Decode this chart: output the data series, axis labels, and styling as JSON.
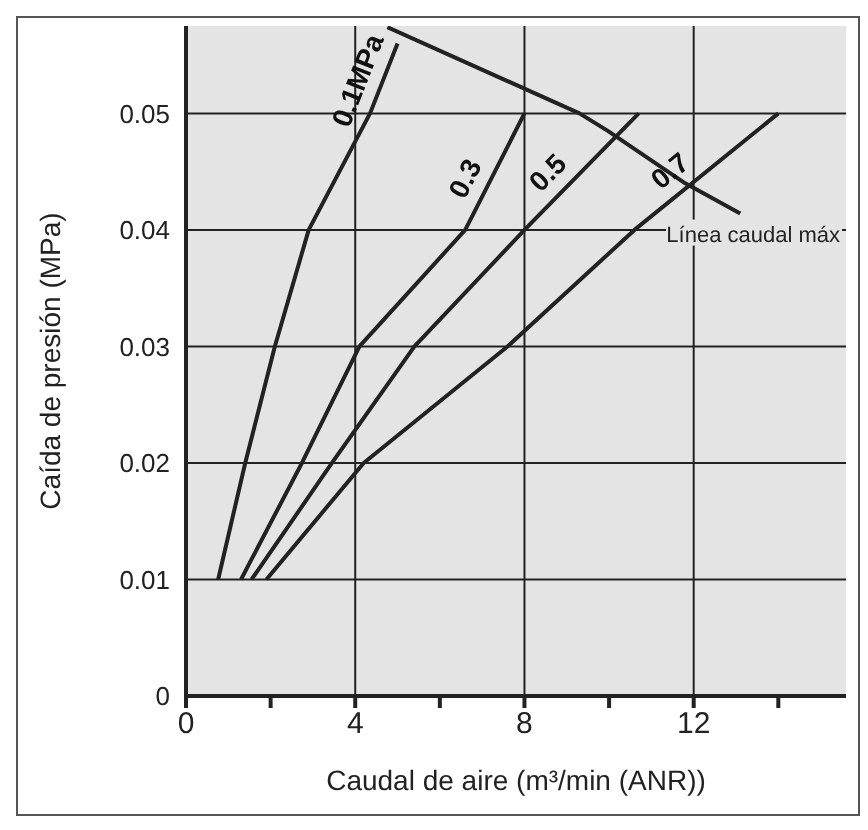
{
  "chart_data": {
    "type": "line",
    "xlabel": "Caudal de aire (m³/min (ANR))",
    "ylabel": "Caída de presión (MPa)",
    "xlim": [
      0,
      15.6
    ],
    "ylim": [
      0,
      0.0575
    ],
    "xticks": [
      0,
      {
        "value": 2,
        "label": null
      },
      4,
      {
        "value": 6,
        "label": null
      },
      8,
      {
        "value": 10,
        "label": null
      },
      12,
      {
        "value": 14,
        "label": null
      }
    ],
    "yticks": [
      0,
      0.01,
      0.02,
      0.03,
      0.04,
      0.05
    ],
    "grid": true,
    "legend": false,
    "marker": "none",
    "line_style": "solid",
    "series": [
      {
        "name": "0.1MPa",
        "color": "#222222",
        "x": [
          0.76,
          1.4,
          2.1,
          2.9,
          4.35,
          5.0
        ],
        "values": [
          0.01,
          0.02,
          0.03,
          0.04,
          0.05,
          0.056
        ]
      },
      {
        "name": "0.3",
        "color": "#222222",
        "x": [
          1.3,
          2.74,
          4.1,
          6.6,
          8.0
        ],
        "values": [
          0.01,
          0.02,
          0.03,
          0.04,
          0.05
        ]
      },
      {
        "name": "0.5",
        "color": "#222222",
        "x": [
          1.55,
          3.45,
          5.4,
          8.0,
          10.7
        ],
        "values": [
          0.01,
          0.02,
          0.03,
          0.04,
          0.05
        ]
      },
      {
        "name": "0.7",
        "color": "#222222",
        "x": [
          1.9,
          4.2,
          7.6,
          10.6,
          14.0
        ],
        "values": [
          0.01,
          0.02,
          0.03,
          0.04,
          0.05
        ]
      },
      {
        "name": "Línea caudal máx",
        "color": "#222222",
        "x": [
          4.76,
          9.3,
          9.97,
          11.8,
          13.1
        ],
        "values": [
          0.0574,
          0.05,
          0.0485,
          0.044,
          0.0414
        ]
      }
    ]
  }
}
